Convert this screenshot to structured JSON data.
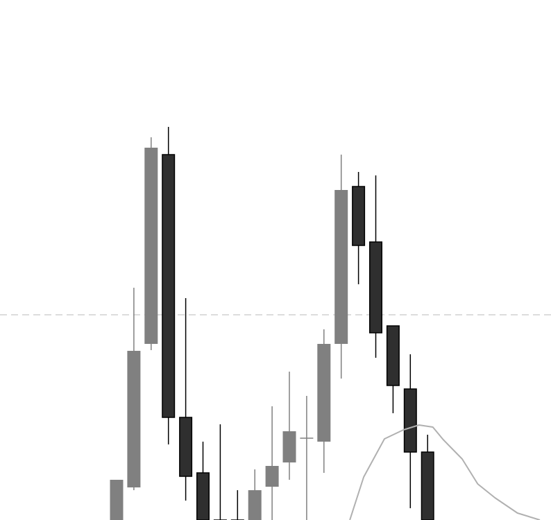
{
  "chart_data": {
    "type": "candlestick",
    "title": "",
    "xlabel": "",
    "ylabel": "",
    "ylim": [
      0,
      750
    ],
    "grid": false,
    "legend": "none",
    "colors": {
      "background": "#ffffff",
      "up_body": "#808080",
      "down_body": "#2f2f2f",
      "down_outline": "#000000",
      "wick": "#000000",
      "reference_line": "#d0d0d0",
      "moving_average": "#b0b0b0"
    },
    "reference_level": 296,
    "candles": [
      {
        "open": 0,
        "close": 58,
        "high": 58,
        "low": 0,
        "direction": "up"
      },
      {
        "open": 47,
        "close": 244,
        "high": 335,
        "low": 43,
        "direction": "up"
      },
      {
        "open": 254,
        "close": 537,
        "high": 552,
        "low": 245,
        "direction": "up"
      },
      {
        "open": 527,
        "close": 148,
        "high": 567,
        "low": 109,
        "direction": "down"
      },
      {
        "open": 148,
        "close": 63,
        "high": 320,
        "low": 28,
        "direction": "down"
      },
      {
        "open": 68,
        "close": 0,
        "high": 113,
        "low": 0,
        "direction": "down"
      },
      {
        "open": 0,
        "close": 0,
        "high": 138,
        "low": 0,
        "direction": "down"
      },
      {
        "open": 0,
        "close": 0,
        "high": 43,
        "low": 0,
        "direction": "down"
      },
      {
        "open": 0,
        "close": 43,
        "high": 73,
        "low": 0,
        "direction": "up"
      },
      {
        "open": 48,
        "close": 78,
        "high": 164,
        "low": 0,
        "direction": "up"
      },
      {
        "open": 83,
        "close": 128,
        "high": 214,
        "low": 58,
        "direction": "up"
      },
      {
        "open": 118,
        "close": 118,
        "high": 179,
        "low": 0,
        "direction": "doji"
      },
      {
        "open": 113,
        "close": 254,
        "high": 275,
        "low": 68,
        "direction": "up"
      },
      {
        "open": 254,
        "close": 476,
        "high": 527,
        "low": 204,
        "direction": "up"
      },
      {
        "open": 481,
        "close": 396,
        "high": 502,
        "low": 340,
        "direction": "down"
      },
      {
        "open": 401,
        "close": 270,
        "high": 497,
        "low": 234,
        "direction": "down"
      },
      {
        "open": 280,
        "close": 194,
        "high": 280,
        "low": 154,
        "direction": "down"
      },
      {
        "open": 189,
        "close": 98,
        "high": 239,
        "low": 17,
        "direction": "down"
      },
      {
        "open": 98,
        "close": 0,
        "high": 123,
        "low": 0,
        "direction": "down"
      }
    ],
    "moving_average": [
      {
        "candle": 13.5,
        "value": 0
      },
      {
        "candle": 14.3,
        "value": 62
      },
      {
        "candle": 15.5,
        "value": 117
      },
      {
        "candle": 16.6,
        "value": 130
      },
      {
        "candle": 17.5,
        "value": 137
      },
      {
        "candle": 18.3,
        "value": 134
      },
      {
        "candle": 18.9,
        "value": 116
      },
      {
        "candle": 20.0,
        "value": 88
      },
      {
        "candle": 20.9,
        "value": 52
      },
      {
        "candle": 21.9,
        "value": 32
      },
      {
        "candle": 23.2,
        "value": 10
      },
      {
        "candle": 24.5,
        "value": 0
      }
    ]
  }
}
